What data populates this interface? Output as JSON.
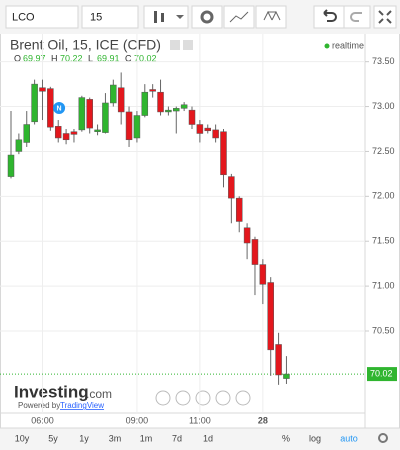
{
  "toolbar": {
    "symbol": "LCO",
    "interval": "15"
  },
  "chart_data": {
    "type": "candlestick",
    "title": "Brent Oil, 15, ICE (CFD)",
    "ohlc": [
      {
        "label": "O",
        "value": 69.97
      },
      {
        "label": "H",
        "value": 70.22
      },
      {
        "label": "L",
        "value": 69.91
      },
      {
        "label": "C",
        "value": 70.02
      }
    ],
    "status": "realtime",
    "marker": "N",
    "up_color": "#2fb52f",
    "down_color": "#e3171d",
    "categories": [
      null,
      null,
      null,
      null,
      "06:00",
      null,
      null,
      null,
      null,
      null,
      null,
      null,
      null,
      null,
      null,
      null,
      "09:00",
      null,
      null,
      null,
      null,
      null,
      null,
      null,
      "11:00",
      null,
      null,
      null,
      null,
      null,
      null,
      null,
      "28",
      null,
      null,
      null
    ],
    "open": [
      72.22,
      72.5,
      72.6,
      72.83,
      73.21,
      73.2,
      72.78,
      72.7,
      72.72,
      72.74,
      73.08,
      72.72,
      72.71,
      73.04,
      73.21,
      72.94,
      72.65,
      72.9,
      73.19,
      73.16,
      72.94,
      72.95,
      72.98,
      72.96,
      72.8,
      72.76,
      72.74,
      72.72,
      72.22,
      71.98,
      71.65,
      71.52,
      71.24,
      71.04,
      70.35,
      69.97
    ],
    "high": [
      72.95,
      72.7,
      72.95,
      73.3,
      73.3,
      73.22,
      72.85,
      72.75,
      72.75,
      73.12,
      73.1,
      72.8,
      73.15,
      73.3,
      73.38,
      73.0,
      72.95,
      73.25,
      73.25,
      73.3,
      73.0,
      73.0,
      73.05,
      73.0,
      72.85,
      72.8,
      72.8,
      72.75,
      72.25,
      72.0,
      71.7,
      71.55,
      71.3,
      71.1,
      70.48,
      70.22
    ],
    "low": [
      72.2,
      72.47,
      72.55,
      72.8,
      72.85,
      72.73,
      72.6,
      72.58,
      72.6,
      72.72,
      72.7,
      72.68,
      72.7,
      73.0,
      72.8,
      72.55,
      72.6,
      72.88,
      73.1,
      72.9,
      72.9,
      72.7,
      72.95,
      72.75,
      72.6,
      72.7,
      72.6,
      72.1,
      71.7,
      71.6,
      71.3,
      70.9,
      70.8,
      70.0,
      69.9,
      69.91
    ],
    "close": [
      72.46,
      72.63,
      72.8,
      73.25,
      73.17,
      72.77,
      72.65,
      72.63,
      72.69,
      73.1,
      72.76,
      72.74,
      73.04,
      73.24,
      72.94,
      72.63,
      72.9,
      73.16,
      73.17,
      72.94,
      72.96,
      72.98,
      73.02,
      72.8,
      72.7,
      72.73,
      72.65,
      72.24,
      71.98,
      71.72,
      71.48,
      71.24,
      71.02,
      70.29,
      70.01,
      70.02
    ],
    "ylim": [
      69.62,
      73.63
    ],
    "yticks": [
      {
        "value": 70.5,
        "label": "70.50"
      },
      {
        "value": 71,
        "label": "71.00"
      },
      {
        "value": 71.5,
        "label": "71.50"
      },
      {
        "value": 72,
        "label": "72.00"
      },
      {
        "value": 72.5,
        "label": "72.50"
      },
      {
        "value": 73,
        "label": "73.00"
      },
      {
        "value": 73.5,
        "label": "73.50"
      }
    ],
    "last_price": {
      "value": 70.02,
      "label": "70.02"
    },
    "grid": true
  },
  "branding": {
    "name": "Investing",
    "suffix": ".com",
    "powered": "Powered by",
    "partner": "TradingView"
  },
  "footer": {
    "ranges": [
      "10y",
      "5y",
      "1y",
      "3m",
      "1m",
      "7d",
      "1d"
    ],
    "options": [
      "%",
      "log",
      "auto"
    ]
  }
}
